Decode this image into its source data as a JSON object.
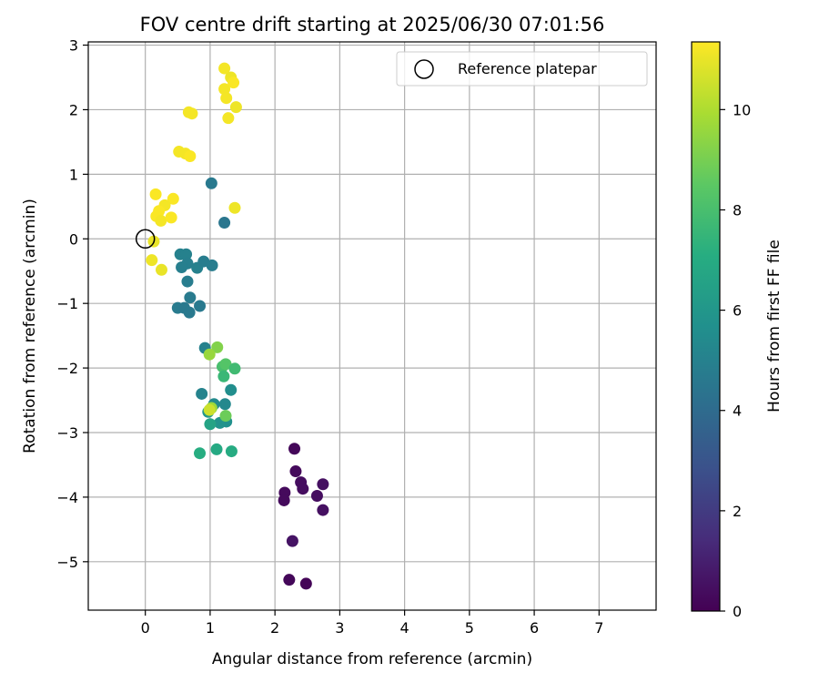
{
  "chart_data": {
    "type": "scatter",
    "title": "FOV centre drift starting at 2025/06/30 07:01:56",
    "xlabel": "Angular distance from reference (arcmin)",
    "ylabel": "Rotation from reference (arcmin)",
    "xlim": [
      -0.88,
      7.88
    ],
    "ylim": [
      -5.75,
      3.05
    ],
    "xticks": [
      0,
      1,
      2,
      3,
      4,
      5,
      6,
      7
    ],
    "yticks": [
      -5,
      -4,
      -3,
      -2,
      -1,
      0,
      1,
      2,
      3
    ],
    "grid": true,
    "legend": {
      "placement": "top-right",
      "entries": [
        "Reference platepar"
      ]
    },
    "reference_point": {
      "name": "Reference platepar",
      "x": 0.0,
      "y": 0.0
    },
    "colorbar": {
      "label": "Hours from first FF file",
      "colormap": "viridis",
      "range": [
        0,
        11.35
      ],
      "ticks": [
        0,
        2,
        4,
        6,
        8,
        10
      ]
    },
    "points": [
      {
        "x": 2.3,
        "y": -3.25,
        "c": 0.2
      },
      {
        "x": 2.32,
        "y": -3.6,
        "c": 0.3
      },
      {
        "x": 2.4,
        "y": -3.77,
        "c": 0.4
      },
      {
        "x": 2.43,
        "y": -3.87,
        "c": 0.4
      },
      {
        "x": 2.15,
        "y": -3.93,
        "c": 0.3
      },
      {
        "x": 2.14,
        "y": -4.05,
        "c": 0.3
      },
      {
        "x": 2.65,
        "y": -3.98,
        "c": 0.4
      },
      {
        "x": 2.74,
        "y": -3.8,
        "c": 0.5
      },
      {
        "x": 2.74,
        "y": -4.2,
        "c": 0.5
      },
      {
        "x": 2.27,
        "y": -4.68,
        "c": 0.6
      },
      {
        "x": 2.22,
        "y": -5.28,
        "c": 0.2
      },
      {
        "x": 2.48,
        "y": -5.34,
        "c": 0.1
      },
      {
        "x": 1.02,
        "y": 0.86,
        "c": 4.6
      },
      {
        "x": 1.22,
        "y": 0.25,
        "c": 4.5
      },
      {
        "x": 0.54,
        "y": -0.24,
        "c": 5.0
      },
      {
        "x": 0.63,
        "y": -0.24,
        "c": 5.0
      },
      {
        "x": 0.65,
        "y": -0.38,
        "c": 4.9
      },
      {
        "x": 0.56,
        "y": -0.44,
        "c": 4.9
      },
      {
        "x": 0.8,
        "y": -0.45,
        "c": 5.0
      },
      {
        "x": 0.9,
        "y": -0.35,
        "c": 4.8
      },
      {
        "x": 1.03,
        "y": -0.41,
        "c": 4.8
      },
      {
        "x": 0.65,
        "y": -0.66,
        "c": 4.8
      },
      {
        "x": 0.69,
        "y": -0.91,
        "c": 4.7
      },
      {
        "x": 0.5,
        "y": -1.07,
        "c": 4.7
      },
      {
        "x": 0.6,
        "y": -1.07,
        "c": 4.6
      },
      {
        "x": 0.68,
        "y": -1.14,
        "c": 4.6
      },
      {
        "x": 0.84,
        "y": -1.04,
        "c": 4.6
      },
      {
        "x": 0.92,
        "y": -1.69,
        "c": 5.0
      },
      {
        "x": 0.87,
        "y": -2.4,
        "c": 5.1
      },
      {
        "x": 1.06,
        "y": -2.56,
        "c": 5.4
      },
      {
        "x": 1.23,
        "y": -2.56,
        "c": 5.3
      },
      {
        "x": 1.32,
        "y": -2.34,
        "c": 5.6
      },
      {
        "x": 1.25,
        "y": -2.83,
        "c": 5.7
      },
      {
        "x": 1.15,
        "y": -2.85,
        "c": 5.8
      },
      {
        "x": 0.97,
        "y": -2.68,
        "c": 6.0
      },
      {
        "x": 1.0,
        "y": -2.87,
        "c": 6.6
      },
      {
        "x": 1.1,
        "y": -3.26,
        "c": 6.9
      },
      {
        "x": 1.33,
        "y": -3.29,
        "c": 7.0
      },
      {
        "x": 0.84,
        "y": -3.32,
        "c": 7.1
      },
      {
        "x": 1.19,
        "y": -1.98,
        "c": 8.0
      },
      {
        "x": 1.24,
        "y": -1.94,
        "c": 8.3
      },
      {
        "x": 1.21,
        "y": -2.13,
        "c": 7.6
      },
      {
        "x": 1.38,
        "y": -2.01,
        "c": 7.8
      },
      {
        "x": 1.11,
        "y": -1.68,
        "c": 9.2
      },
      {
        "x": 0.99,
        "y": -1.79,
        "c": 9.6
      },
      {
        "x": 1.24,
        "y": -2.74,
        "c": 8.8
      },
      {
        "x": 1.02,
        "y": -2.62,
        "c": 9.7
      },
      {
        "x": 0.99,
        "y": -2.65,
        "c": 10.5
      },
      {
        "x": 0.13,
        "y": -0.04,
        "c": 11.0
      },
      {
        "x": 0.1,
        "y": -0.33,
        "c": 11.1
      },
      {
        "x": 0.25,
        "y": -0.48,
        "c": 11.0
      },
      {
        "x": 0.16,
        "y": 0.69,
        "c": 11.3
      },
      {
        "x": 0.43,
        "y": 0.62,
        "c": 11.3
      },
      {
        "x": 0.3,
        "y": 0.52,
        "c": 11.2
      },
      {
        "x": 0.21,
        "y": 0.43,
        "c": 11.3
      },
      {
        "x": 0.17,
        "y": 0.35,
        "c": 11.3
      },
      {
        "x": 0.24,
        "y": 0.28,
        "c": 11.2
      },
      {
        "x": 0.4,
        "y": 0.33,
        "c": 11.3
      },
      {
        "x": 1.38,
        "y": 0.48,
        "c": 11.1
      },
      {
        "x": 0.52,
        "y": 1.35,
        "c": 11.2
      },
      {
        "x": 0.62,
        "y": 1.32,
        "c": 11.2
      },
      {
        "x": 0.69,
        "y": 1.28,
        "c": 11.3
      },
      {
        "x": 0.67,
        "y": 1.96,
        "c": 11.2
      },
      {
        "x": 0.72,
        "y": 1.94,
        "c": 11.2
      },
      {
        "x": 1.22,
        "y": 2.64,
        "c": 11.2
      },
      {
        "x": 1.32,
        "y": 2.5,
        "c": 11.1
      },
      {
        "x": 1.36,
        "y": 2.42,
        "c": 11.3
      },
      {
        "x": 1.22,
        "y": 2.32,
        "c": 11.2
      },
      {
        "x": 1.25,
        "y": 2.18,
        "c": 11.2
      },
      {
        "x": 1.4,
        "y": 2.04,
        "c": 11.1
      },
      {
        "x": 1.28,
        "y": 1.87,
        "c": 11.2
      }
    ]
  }
}
